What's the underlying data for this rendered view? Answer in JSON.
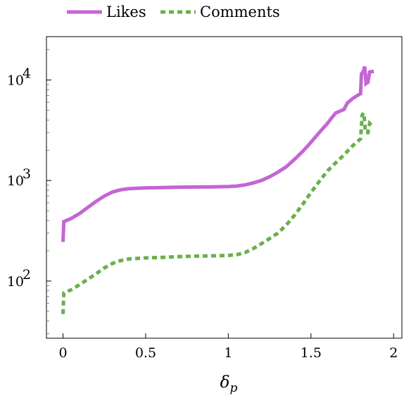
{
  "chart_data": {
    "type": "line",
    "xlabel": "δ",
    "xlabel_sub": "p",
    "ylabel": "",
    "y_scale": "log",
    "xlim": [
      -0.1,
      2.05
    ],
    "ylim": [
      27,
      27000
    ],
    "x_ticks": [
      0,
      0.5,
      1,
      1.5,
      2
    ],
    "x_tick_labels": [
      "0",
      "0.5",
      "1",
      "1.5",
      "2"
    ],
    "y_ticks": [
      100,
      1000,
      10000
    ],
    "y_tick_labels": [
      {
        "base": "10",
        "exp": "2"
      },
      {
        "base": "10",
        "exp": "3"
      },
      {
        "base": "10",
        "exp": "4"
      }
    ],
    "grid": false,
    "legend_position": "top-left-outside",
    "series": [
      {
        "name": "Likes",
        "color": "#c466d4",
        "dash": "solid",
        "points": [
          [
            0.0,
            245
          ],
          [
            0.005,
            390
          ],
          [
            0.05,
            420
          ],
          [
            0.1,
            470
          ],
          [
            0.15,
            540
          ],
          [
            0.2,
            620
          ],
          [
            0.25,
            700
          ],
          [
            0.3,
            770
          ],
          [
            0.35,
            810
          ],
          [
            0.4,
            830
          ],
          [
            0.5,
            845
          ],
          [
            0.6,
            850
          ],
          [
            0.7,
            860
          ],
          [
            0.8,
            862
          ],
          [
            0.9,
            865
          ],
          [
            1.0,
            870
          ],
          [
            1.05,
            880
          ],
          [
            1.1,
            905
          ],
          [
            1.15,
            945
          ],
          [
            1.2,
            1000
          ],
          [
            1.25,
            1090
          ],
          [
            1.3,
            1210
          ],
          [
            1.35,
            1370
          ],
          [
            1.4,
            1620
          ],
          [
            1.45,
            1950
          ],
          [
            1.5,
            2400
          ],
          [
            1.55,
            3000
          ],
          [
            1.6,
            3700
          ],
          [
            1.62,
            4100
          ],
          [
            1.65,
            4700
          ],
          [
            1.7,
            5100
          ],
          [
            1.72,
            5900
          ],
          [
            1.75,
            6500
          ],
          [
            1.78,
            7000
          ],
          [
            1.8,
            7300
          ],
          [
            1.805,
            11500
          ],
          [
            1.815,
            12000
          ],
          [
            1.825,
            13600
          ],
          [
            1.833,
            9200
          ],
          [
            1.845,
            9500
          ],
          [
            1.855,
            12000
          ],
          [
            1.88,
            12200
          ]
        ]
      },
      {
        "name": "Comments",
        "color": "#6ab04c",
        "dash": "dashed",
        "points": [
          [
            0.0,
            47
          ],
          [
            0.005,
            76
          ],
          [
            0.05,
            82
          ],
          [
            0.1,
            92
          ],
          [
            0.15,
            104
          ],
          [
            0.2,
            118
          ],
          [
            0.25,
            135
          ],
          [
            0.3,
            150
          ],
          [
            0.35,
            160
          ],
          [
            0.4,
            166
          ],
          [
            0.5,
            170
          ],
          [
            0.6,
            172
          ],
          [
            0.7,
            175
          ],
          [
            0.8,
            177
          ],
          [
            0.9,
            178
          ],
          [
            1.0,
            180
          ],
          [
            1.05,
            183
          ],
          [
            1.1,
            192
          ],
          [
            1.15,
            210
          ],
          [
            1.2,
            235
          ],
          [
            1.25,
            265
          ],
          [
            1.3,
            300
          ],
          [
            1.35,
            360
          ],
          [
            1.4,
            450
          ],
          [
            1.45,
            580
          ],
          [
            1.5,
            760
          ],
          [
            1.55,
            980
          ],
          [
            1.6,
            1250
          ],
          [
            1.65,
            1500
          ],
          [
            1.7,
            1800
          ],
          [
            1.75,
            2200
          ],
          [
            1.8,
            2600
          ],
          [
            1.81,
            4500
          ],
          [
            1.82,
            4700
          ],
          [
            1.83,
            3000
          ],
          [
            1.845,
            3000
          ],
          [
            1.855,
            3700
          ],
          [
            1.87,
            3500
          ]
        ]
      }
    ]
  }
}
